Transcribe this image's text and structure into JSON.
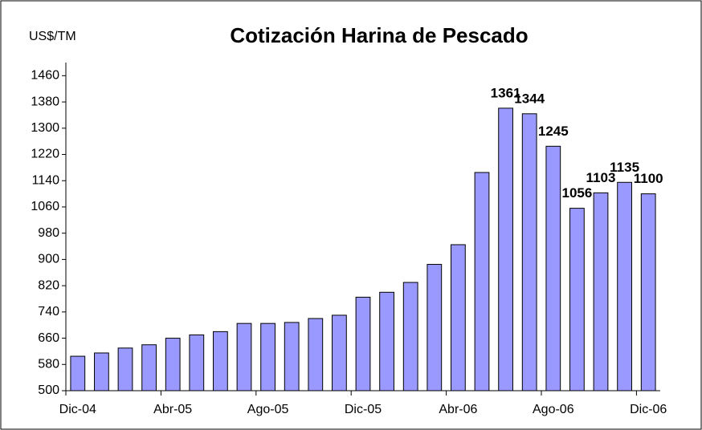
{
  "chart_data": {
    "type": "bar",
    "title": "Cotización Harina de Pescado",
    "y_label": "US$/TM",
    "categories": [
      "Dic-04",
      null,
      null,
      null,
      "Abr-05",
      null,
      null,
      null,
      "Ago-05",
      null,
      null,
      null,
      "Dic-05",
      null,
      null,
      null,
      "Abr-06",
      null,
      null,
      null,
      "Ago-06",
      null,
      null,
      null,
      "Dic-06"
    ],
    "values": [
      605,
      615,
      630,
      640,
      660,
      670,
      680,
      705,
      705,
      708,
      720,
      730,
      785,
      800,
      830,
      885,
      945,
      1165,
      1361,
      1344,
      1245,
      1056,
      1103,
      1135,
      1100
    ],
    "value_labels": [
      null,
      null,
      null,
      null,
      null,
      null,
      null,
      null,
      null,
      null,
      null,
      null,
      null,
      null,
      null,
      null,
      null,
      null,
      "1361",
      "1344",
      "1245",
      "1056",
      "1103",
      "1135",
      "1100"
    ],
    "color": "#9999ff",
    "ylim": [
      500,
      1500
    ],
    "yticks": [
      500,
      580,
      660,
      740,
      820,
      900,
      980,
      1060,
      1140,
      1220,
      1300,
      1380,
      1460
    ],
    "grid": false
  }
}
